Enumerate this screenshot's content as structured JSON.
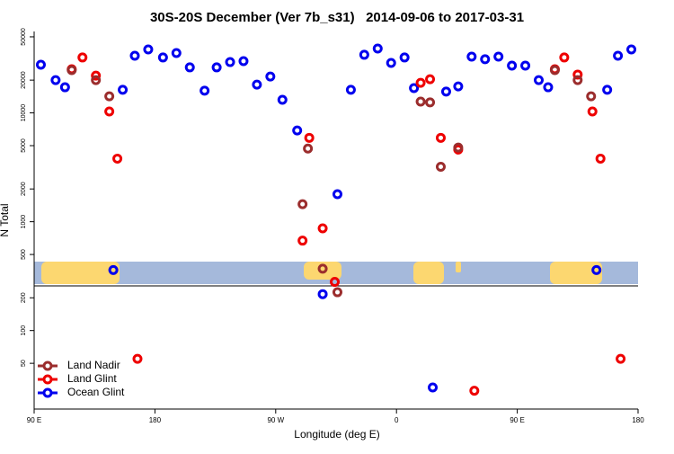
{
  "chart_data": {
    "type": "scatter",
    "title": "30S-20S December (Ver 7b_s31)   2014-09-06 to 2017-03-31",
    "x_label": "Longitude (deg E)",
    "y_label": "N Total",
    "log_y": true,
    "legend": "lower left",
    "xlim": [
      90,
      540
    ],
    "xticks": [
      {
        "value": 90,
        "label": "90 E"
      },
      180,
      {
        "value": 270,
        "label": "90 W"
      },
      {
        "value": 360,
        "label": "0"
      },
      {
        "value": 450,
        "label": "90 E"
      },
      {
        "value": 540,
        "label": "180"
      }
    ],
    "ylim": [
      19,
      56000
    ],
    "yticks": [
      50,
      100,
      200,
      500,
      1000,
      2000,
      5000,
      10000,
      20000,
      50000
    ],
    "series": [
      {
        "name": "Land Nadir",
        "color": "#9b2d2d",
        "x": [
          118,
          136,
          146,
          290,
          294,
          305,
          316,
          378,
          385,
          393,
          406,
          478,
          495,
          505
        ],
        "values": [
          24700,
          20000,
          14200,
          1450,
          4700,
          370,
          225,
          12700,
          12500,
          3200,
          4800,
          24700,
          20000,
          14200
        ]
      },
      {
        "name": "Land Glint",
        "color": "#ee0000",
        "x": [
          118,
          126,
          136,
          146,
          152,
          167,
          290,
          295,
          305,
          314,
          378,
          385,
          393,
          406,
          418,
          478,
          485,
          495,
          506,
          512,
          527
        ],
        "values": [
          25200,
          32300,
          22000,
          10300,
          3800,
          55,
          670,
          5900,
          870,
          280,
          18900,
          20400,
          5900,
          4600,
          28,
          25200,
          32300,
          22500,
          10300,
          3800,
          55
        ]
      },
      {
        "name": "Ocean Glint",
        "color": "#0000ee",
        "x": [
          95,
          106,
          113,
          149,
          156,
          165,
          175,
          186,
          196,
          206,
          217,
          226,
          236,
          246,
          256,
          266,
          275,
          286,
          305,
          316,
          326,
          336,
          346,
          356,
          366,
          373,
          387,
          397,
          406,
          416,
          426,
          436,
          446,
          456,
          466,
          473,
          509,
          517,
          525,
          535
        ],
        "values": [
          27700,
          20000,
          17200,
          360,
          16300,
          33500,
          38300,
          32300,
          35500,
          26200,
          16000,
          26200,
          29300,
          29900,
          18200,
          21600,
          13200,
          6900,
          216,
          1790,
          16300,
          34200,
          39000,
          28800,
          32300,
          16900,
          30,
          15700,
          17500,
          32900,
          31100,
          32900,
          27200,
          27200,
          20000,
          17200,
          360,
          16300,
          33500,
          38300
        ]
      }
    ]
  }
}
